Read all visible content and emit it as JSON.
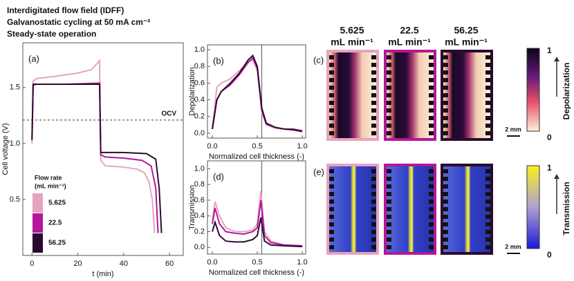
{
  "header": {
    "lines": [
      "Interdigitated flow field (IDFF)",
      "Galvanostatic cycling at 50 mA cm⁻²",
      "Steady-state operation"
    ]
  },
  "chart_data": [
    {
      "type": "line",
      "panel": "(a)",
      "x_label": "t (min)",
      "y_label": "Cell voltage (V)",
      "xlim": [
        -4,
        66
      ],
      "ylim": [
        0,
        1.9
      ],
      "xticks": [
        0,
        20,
        40,
        60
      ],
      "yticks": [
        0.5,
        {
          "value": 1.0,
          "label": "1.0"
        },
        1.5
      ],
      "reference": {
        "value": 1.21,
        "label": "OCV"
      },
      "legend_title": [
        "Flow rate",
        "(mL min⁻¹)"
      ],
      "series": [
        {
          "name": "5.625",
          "color": "#e6a3bf",
          "x": [
            0,
            0.5,
            2,
            10,
            20,
            26,
            29.5,
            30,
            32,
            40,
            46,
            49,
            51,
            52.5,
            53.5
          ],
          "values": [
            1.0,
            1.56,
            1.58,
            1.6,
            1.63,
            1.66,
            1.74,
            0.85,
            0.8,
            0.79,
            0.77,
            0.74,
            0.66,
            0.5,
            0.2
          ]
        },
        {
          "name": "22.5",
          "color": "#b3179b",
          "x": [
            0,
            0.5,
            2,
            15,
            29.5,
            30,
            32,
            40,
            48,
            52,
            54,
            55
          ],
          "values": [
            1.05,
            1.52,
            1.53,
            1.53,
            1.54,
            0.9,
            0.88,
            0.87,
            0.85,
            0.8,
            0.6,
            0.2
          ]
        },
        {
          "name": "56.25",
          "color": "#2b0a2f",
          "x": [
            0,
            0.5,
            2,
            15,
            29.5,
            30,
            32,
            40,
            50,
            54,
            55.5,
            56.5
          ],
          "values": [
            1.03,
            1.53,
            1.53,
            1.53,
            1.53,
            0.92,
            0.92,
            0.92,
            0.91,
            0.86,
            0.6,
            0.2
          ]
        }
      ]
    },
    {
      "type": "line",
      "panel": "(b)",
      "x_label": "Normalized cell thickness (-)",
      "y_label": "Depolarization",
      "xlim": [
        -0.054,
        1.038
      ],
      "ylim": [
        -0.058,
        1.058
      ],
      "xticks": [
        {
          "value": 0,
          "label": "0.0"
        },
        0.5,
        {
          "value": 1,
          "label": "1.0"
        }
      ],
      "yticks": [
        {
          "value": 0,
          "label": "0.0"
        },
        0.2,
        0.4,
        0.6,
        0.8,
        {
          "value": 1,
          "label": "1.0"
        }
      ],
      "vline": 0.55,
      "series": [
        {
          "name": "5.625",
          "color": "#e6a3bf",
          "x": [
            0,
            0.05,
            0.1,
            0.2,
            0.3,
            0.4,
            0.45,
            0.5,
            0.55,
            0.6,
            0.7,
            0.8,
            0.9,
            1.0
          ],
          "values": [
            0.05,
            0.55,
            0.6,
            0.65,
            0.75,
            0.85,
            0.88,
            0.75,
            0.25,
            0.1,
            0.06,
            0.05,
            0.04,
            0.03
          ]
        },
        {
          "name": "22.5",
          "color": "#b3179b",
          "x": [
            0,
            0.05,
            0.1,
            0.2,
            0.3,
            0.4,
            0.45,
            0.5,
            0.55,
            0.6,
            0.7,
            0.8,
            0.9,
            1.0
          ],
          "values": [
            0.05,
            0.4,
            0.5,
            0.58,
            0.7,
            0.85,
            0.9,
            0.78,
            0.28,
            0.11,
            0.07,
            0.05,
            0.05,
            0.03
          ]
        },
        {
          "name": "56.25",
          "color": "#2b0a2f",
          "x": [
            0,
            0.05,
            0.1,
            0.2,
            0.3,
            0.4,
            0.45,
            0.5,
            0.55,
            0.6,
            0.7,
            0.8,
            0.9,
            1.0
          ],
          "values": [
            0.05,
            0.4,
            0.5,
            0.6,
            0.72,
            0.88,
            0.93,
            0.8,
            0.3,
            0.12,
            0.07,
            0.05,
            0.04,
            0.02
          ]
        }
      ]
    },
    {
      "type": "line",
      "panel": "(d)",
      "x_label": "Normalized cell thickness (-)",
      "y_label": "Transmission",
      "xlim": [
        -0.054,
        1.038
      ],
      "ylim": [
        -0.085,
        1.1
      ],
      "xticks": [
        {
          "value": 0,
          "label": "0.0"
        },
        0.5,
        {
          "value": 1,
          "label": "1.0"
        }
      ],
      "yticks": [
        {
          "value": 0,
          "label": "0.0"
        },
        0.2,
        0.4,
        0.6,
        0.8,
        {
          "value": 1,
          "label": "1.0"
        }
      ],
      "vline": 0.55,
      "series": [
        {
          "name": "5.625",
          "color": "#e6a3bf",
          "x": [
            0,
            0.03,
            0.08,
            0.15,
            0.25,
            0.35,
            0.45,
            0.5,
            0.54,
            0.58,
            0.65,
            0.8,
            1.0
          ],
          "values": [
            0.35,
            0.58,
            0.4,
            0.25,
            0.2,
            0.2,
            0.22,
            0.3,
            0.72,
            0.2,
            0.08,
            0.03,
            0.02
          ]
        },
        {
          "name": "22.5",
          "color": "#b3179b",
          "x": [
            0,
            0.03,
            0.08,
            0.15,
            0.25,
            0.35,
            0.45,
            0.5,
            0.54,
            0.58,
            0.65,
            0.8,
            1.0
          ],
          "values": [
            0.3,
            0.5,
            0.3,
            0.2,
            0.18,
            0.17,
            0.2,
            0.25,
            0.6,
            0.15,
            0.06,
            0.03,
            0.02
          ]
        },
        {
          "name": "56.25",
          "color": "#2b0a2f",
          "x": [
            0,
            0.03,
            0.08,
            0.15,
            0.25,
            0.35,
            0.45,
            0.5,
            0.54,
            0.58,
            0.65,
            0.8,
            1.0
          ],
          "values": [
            0.2,
            0.32,
            0.15,
            0.08,
            0.07,
            0.07,
            0.1,
            0.15,
            0.38,
            0.08,
            0.03,
            0.02,
            0.01
          ]
        }
      ]
    }
  ],
  "images": {
    "columns": [
      {
        "rate": "5.625",
        "unit": "mL min⁻¹"
      },
      {
        "rate": "22.5",
        "unit": "mL min⁻¹"
      },
      {
        "rate": "56.25",
        "unit": "mL min⁻¹"
      }
    ],
    "top_panel": "(c)",
    "bottom_panel": "(e)",
    "top_colorbar": {
      "label": "Depolarization",
      "max": "1",
      "min": "0"
    },
    "bottom_colorbar": {
      "label": "Transmission",
      "max": "1",
      "min": "0"
    },
    "scale_bar": "2 mm"
  }
}
